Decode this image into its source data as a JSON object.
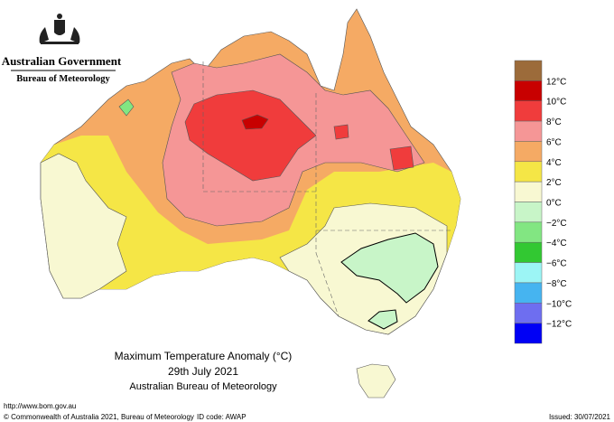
{
  "header": {
    "government": "Australian Government",
    "agency": "Bureau of Meteorology"
  },
  "map": {
    "title": "Maximum Temperature Anomaly (°C)",
    "date": "29th July 2021",
    "source": "Australian Bureau of Meteorology"
  },
  "legend": {
    "colors": [
      "#9c6b3a",
      "#c80000",
      "#f03c3c",
      "#f59696",
      "#f5aa64",
      "#f5e646",
      "#f8f8d2",
      "#c8f5c8",
      "#82e682",
      "#32c832",
      "#9cf5f5",
      "#46b4f0",
      "#6e6ef0",
      "#0000f5"
    ],
    "labels": [
      "12°C",
      "10°C",
      "8°C",
      "6°C",
      "4°C",
      "2°C",
      "0°C",
      "−2°C",
      "−4°C",
      "−6°C",
      "−8°C",
      "−10°C",
      "−12°C"
    ]
  },
  "footer": {
    "url": "http://www.bom.gov.au",
    "copyright": "© Commonwealth of Australia 2021, Bureau of Meteorology",
    "id_code": "ID code: AWAP",
    "issued": "Issued: 30/07/2021"
  }
}
